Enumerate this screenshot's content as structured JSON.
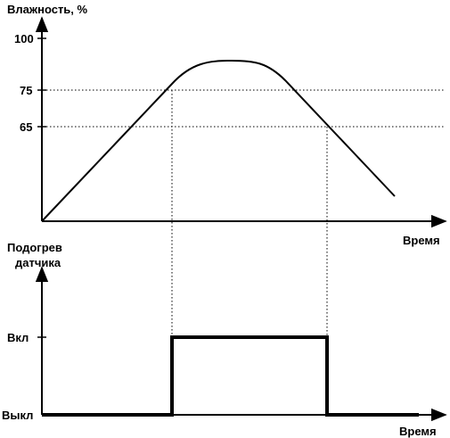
{
  "chart_data": [
    {
      "type": "line",
      "ylabel": "Влажность, %",
      "xlabel": "Время",
      "y_ticks": [
        "100",
        "75",
        "65"
      ],
      "y_tick_values": [
        100,
        75,
        65
      ],
      "ylim": [
        0,
        100
      ],
      "grid": false,
      "reference_lines": [
        75,
        65
      ],
      "series": [
        {
          "x": [
            0,
            10,
            20,
            30,
            36,
            40,
            46,
            50,
            56,
            60,
            70,
            80,
            88
          ],
          "y": [
            0,
            24,
            49,
            73,
            82,
            85,
            86,
            85,
            80,
            75,
            51,
            27,
            8
          ]
        }
      ]
    },
    {
      "type": "line",
      "ylabel": "Подогрев датчика",
      "xlabel": "Время",
      "y_ticks": [
        "Вкл",
        "Выкл"
      ],
      "series": [
        {
          "x": [
            0,
            32,
            32,
            71,
            71,
            100
          ],
          "y": [
            0,
            0,
            1,
            1,
            0,
            0
          ]
        }
      ]
    }
  ],
  "top": {
    "ylabel": "Влажность, %",
    "xlabel": "Время",
    "ticks": [
      "100",
      "75",
      "65"
    ]
  },
  "bottom": {
    "ylabel_line1": "Подогрев",
    "ylabel_line2": "датчика",
    "xlabel": "Время",
    "tick_on": "Вкл",
    "tick_off": "Выкл"
  }
}
